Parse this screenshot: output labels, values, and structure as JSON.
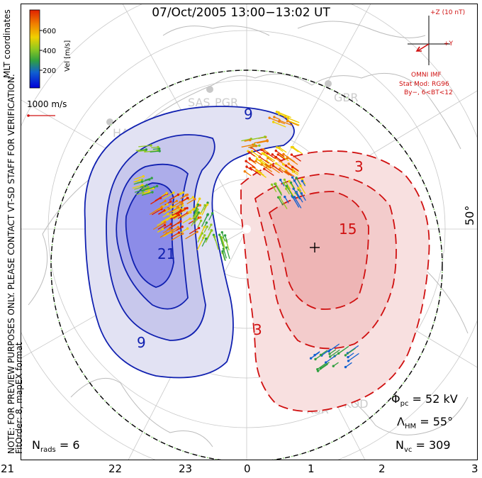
{
  "title": "07/Oct/2005 13:00−13:02 UT",
  "side_note": {
    "line1": "NOTE: FOR PREVIEW PURPOSES ONLY. PLEASE CONTACT VT-SD STAFF FOR VERIFICATION.",
    "line2": "FitOrder: 8, mapEX format"
  },
  "colorbar": {
    "label": "Vel [m/s]",
    "coord_label": "MLT coordinates",
    "ticks": [
      "600",
      "400",
      "200"
    ],
    "colors": [
      "#0000d8",
      "#1060d0",
      "#30a040",
      "#90c820",
      "#f0d000",
      "#f08000",
      "#e02000"
    ]
  },
  "scale_vector": {
    "label": "1000 m/s"
  },
  "imf": {
    "z_label": "+Z (10 nT)",
    "y_label": "+Y",
    "source": "OMNI IMF",
    "stat_mod": "Stat Mod: RG96",
    "condition": "By−, 6<BT<12"
  },
  "latitude_label": "50°",
  "stations": [
    "SAS",
    "PGR",
    "GBR",
    "HAN",
    "KSR",
    "KOD"
  ],
  "contour_labels": [
    "9",
    "21",
    "9",
    "3",
    "15",
    "3"
  ],
  "stats": {
    "phi_pc": {
      "symbol": "Φ",
      "sub": "pc",
      "value": "= 52 kV"
    },
    "lambda_hm": {
      "symbol": "Λ",
      "sub": "HM",
      "value": "= 55°"
    },
    "n_vc": {
      "symbol": "N",
      "sub": "vc",
      "value": "= 309"
    },
    "n_rads": {
      "symbol": "N",
      "sub": "rads",
      "value": "= 6"
    }
  },
  "mlt_ticks": [
    "21",
    "22",
    "23",
    "0",
    "1",
    "2",
    "3"
  ]
}
